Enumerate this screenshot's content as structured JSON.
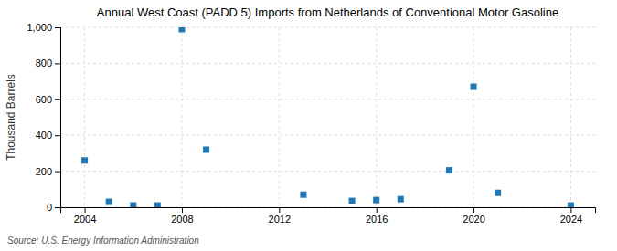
{
  "chart_data": {
    "type": "scatter",
    "title": "Annual West Coast (PADD 5) Imports from Netherlands of Conventional Motor Gasoline",
    "ylabel": "Thousand Barrels",
    "source": "Source: U.S. Energy Information Administration",
    "x": [
      2004,
      2005,
      2006,
      2007,
      2008,
      2009,
      2013,
      2015,
      2016,
      2017,
      2019,
      2020,
      2021,
      2024
    ],
    "values": [
      260,
      30,
      10,
      10,
      990,
      320,
      70,
      35,
      40,
      45,
      205,
      670,
      80,
      10
    ],
    "marker": "square",
    "xlim": [
      2003,
      2025
    ],
    "ylim": [
      0,
      1000
    ],
    "xticks": [
      2004,
      2008,
      2012,
      2016,
      2020,
      2024
    ],
    "yticks": [
      0,
      200,
      400,
      600,
      800,
      {
        "value": 1000,
        "label": "1,000"
      }
    ],
    "grid": true
  }
}
